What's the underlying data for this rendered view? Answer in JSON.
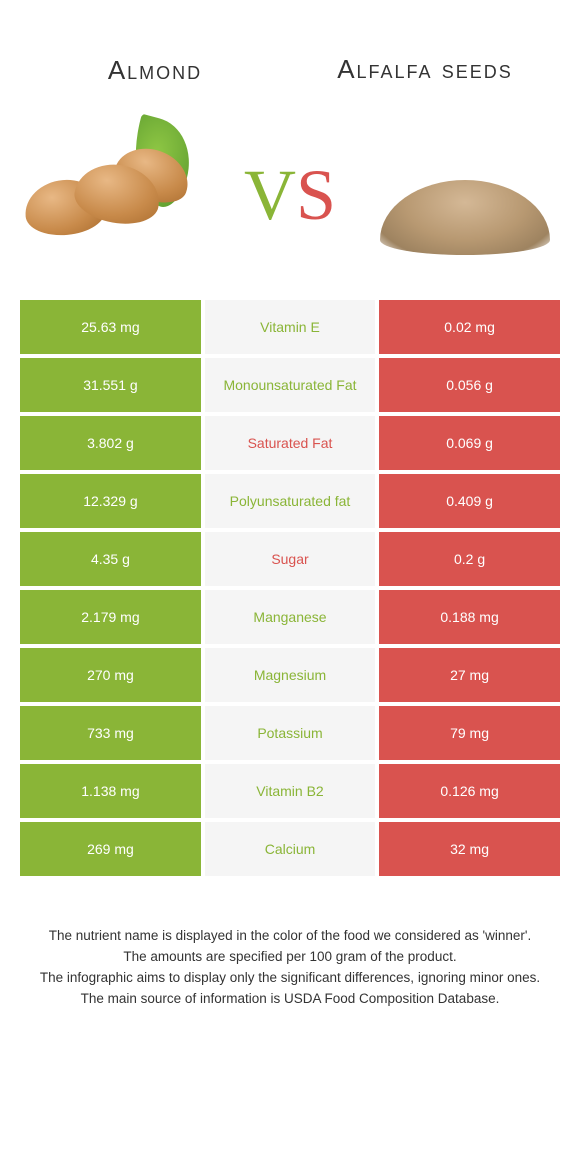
{
  "header": {
    "left_title": "Almond",
    "right_title": "Alfalfa seeds",
    "vs_v": "V",
    "vs_s": "S"
  },
  "colors": {
    "left_food": "#8ab537",
    "right_food": "#d9534f",
    "mid_bg": "#f5f5f5",
    "cell_text": "#ffffff"
  },
  "table": {
    "rows": [
      {
        "left": "25.63 mg",
        "label": "Vitamin E",
        "right": "0.02 mg",
        "winner": "left"
      },
      {
        "left": "31.551 g",
        "label": "Monounsaturated Fat",
        "right": "0.056 g",
        "winner": "left"
      },
      {
        "left": "3.802 g",
        "label": "Saturated Fat",
        "right": "0.069 g",
        "winner": "right"
      },
      {
        "left": "12.329 g",
        "label": "Polyunsaturated fat",
        "right": "0.409 g",
        "winner": "left"
      },
      {
        "left": "4.35 g",
        "label": "Sugar",
        "right": "0.2 g",
        "winner": "right"
      },
      {
        "left": "2.179 mg",
        "label": "Manganese",
        "right": "0.188 mg",
        "winner": "left"
      },
      {
        "left": "270 mg",
        "label": "Magnesium",
        "right": "27 mg",
        "winner": "left"
      },
      {
        "left": "733 mg",
        "label": "Potassium",
        "right": "79 mg",
        "winner": "left"
      },
      {
        "left": "1.138 mg",
        "label": "Vitamin B2",
        "right": "0.126 mg",
        "winner": "left"
      },
      {
        "left": "269 mg",
        "label": "Calcium",
        "right": "32 mg",
        "winner": "left"
      }
    ]
  },
  "footer": {
    "line1": "The nutrient name is displayed in the color of the food we considered as 'winner'.",
    "line2": "The amounts are specified per 100 gram of the product.",
    "line3": "The infographic aims to display only the significant differences, ignoring minor ones.",
    "line4": "The main source of information is USDA Food Composition Database."
  }
}
